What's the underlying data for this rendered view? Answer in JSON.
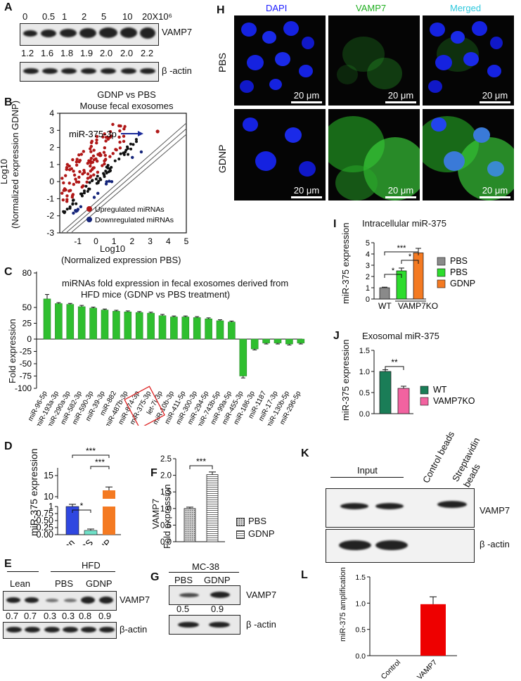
{
  "panels": {
    "A": "A",
    "B": "B",
    "C": "C",
    "D": "D",
    "E": "E",
    "F": "F",
    "G": "G",
    "H": "H",
    "I": "I",
    "J": "J",
    "K": "K",
    "L": "L"
  },
  "A": {
    "doses": [
      "0",
      "0.5",
      "1",
      "2",
      "5",
      "10",
      "20X10⁶"
    ],
    "ratios": [
      "1.2",
      "1.6",
      "1.8",
      "1.9",
      "2.0",
      "2.0",
      "2.2"
    ],
    "protein": "VAMP7",
    "loading": "β -actin"
  },
  "B": {
    "title": "GDNP vs PBS",
    "subtitle": "Mouse fecal exosomes",
    "xlabel": "Log10",
    "xlabel2": "(Normalized expression PBS)",
    "ylabel": "Log10",
    "ylabel2": "(Normalized expression GDNP)",
    "annotation": "miR-375-3p",
    "legend_up": "Upregulated miRNAs",
    "legend_down": "Downregulated miRNAs",
    "colors": {
      "up": "#b01818",
      "down": "#15257a"
    }
  },
  "C": {
    "title": "miRNAs fold expression in fecal exosomes derived from",
    "title2": "HFD mice (GDNP vs PBS treatment)",
    "ylabel": "Fold expression",
    "highlighted": "miR-375-3p"
  },
  "D": {
    "ylabel": "miR-375 expression",
    "sig1": "***",
    "sig2": "***",
    "sig3": "*"
  },
  "E": {
    "header": "HFD",
    "groups": [
      "Lean",
      "PBS",
      "GDNP"
    ],
    "ratios": [
      "0.7",
      "0.7",
      "0.3",
      "0.3",
      "0.8",
      "0.9"
    ],
    "protein": "VAMP7",
    "loading": "β-actin"
  },
  "F": {
    "ylabel": "VAMP7",
    "ylabel2": "Fold expression",
    "sig": "***",
    "legend": [
      "PBS",
      "GDNP"
    ]
  },
  "G": {
    "header": "MC-38",
    "lanes": [
      "PBS",
      "GDNP"
    ],
    "ratios": [
      "0.5",
      "0.9"
    ],
    "protein": "VAMP7",
    "loading": "β -actin"
  },
  "H": {
    "channels": [
      "DAPI",
      "VAMP7",
      "Merged"
    ],
    "channel_colors": [
      "#1a1aff",
      "#1fae1f",
      "#2fc8dd"
    ],
    "rows": [
      "PBS",
      "GDNP"
    ],
    "scale": "20 μm"
  },
  "I": {
    "title": "Intracellular miR-375",
    "ylabel": "miR-375 expression",
    "legend": [
      "PBS",
      "PBS",
      "GDNP"
    ],
    "group1": "WT",
    "group2": "VAMP7KO",
    "sigs": [
      "***",
      "*",
      "*"
    ]
  },
  "J": {
    "title": "Exosomal miR-375",
    "ylabel": "miR-375 expression",
    "legend": [
      "WT",
      "VAMP7KO"
    ],
    "sig": "**"
  },
  "K": {
    "input": "Input",
    "control": "Control beads",
    "strep1": "Streptavidin",
    "strep2": "beads",
    "protein": "VAMP7",
    "loading": "β -actin"
  },
  "L": {
    "ylabel": "miR-375 amplification"
  },
  "chart_data": [
    {
      "panel": "B",
      "type": "scatter",
      "title": "GDNP vs PBS",
      "subtitle": "Mouse fecal exosomes",
      "xlim": [
        -2,
        5
      ],
      "ylim": [
        -3,
        4
      ],
      "xticks": [
        "-1",
        "0",
        "1",
        "2",
        "3",
        "4",
        "5"
      ],
      "yticks": [
        "4",
        "3",
        "2",
        "1",
        "0",
        "-1",
        "-2",
        "-3"
      ],
      "legend": [
        "Upregulated miRNAs",
        "Downregulated miRNAs"
      ],
      "annotation": {
        "label": "miR-375-3p",
        "x": 3.1,
        "y": 3.1
      }
    },
    {
      "panel": "C",
      "type": "bar",
      "categories": [
        "miR-96-5p",
        "miR-193a-3p",
        "miR-290a-3p",
        "miR-582-3p",
        "miR-590-3p",
        "miR-39-3p",
        "miR-882",
        "miR-487b-3p",
        "miR-874-3p",
        "miR-375-3p",
        "let-7i-3p",
        "miR-10b-3p",
        "miR-411-5p",
        "miR-300-3p",
        "miR-294-5p",
        "miR-743b-5p",
        "miR-99a-5p",
        "miR-455-3p",
        "miR-186-3p",
        "miR-1187",
        "miR-17-3p",
        "miR-130b-5p",
        "miR-296-5p"
      ],
      "values": [
        72,
        60,
        58,
        52,
        49,
        46,
        44,
        43,
        42,
        41,
        37,
        35,
        35,
        34,
        32,
        29,
        27,
        -75,
        -20,
        -8,
        -8,
        -10,
        -8
      ],
      "errors": [
        7,
        1.5,
        1.5,
        2,
        1.5,
        1.5,
        1.5,
        1.5,
        1.5,
        1.5,
        2,
        1.5,
        1.5,
        1.5,
        1.5,
        1.5,
        1.5,
        3,
        1.5,
        1.5,
        1.5,
        1.5,
        1.5
      ],
      "ylabel": "Fold expression",
      "yticks": [
        "80",
        "50",
        "25",
        "0",
        "-25",
        "-50",
        "-75",
        "-100"
      ]
    },
    {
      "panel": "D",
      "type": "bar",
      "categories": [
        "Lean",
        "PBS",
        "GDNP"
      ],
      "values": [
        1.0,
        0.15,
        11.5
      ],
      "errors": [
        0.08,
        0.05,
        0.8
      ],
      "colors": [
        "#2f47e0",
        "#6fe1c8",
        "#f47a22"
      ],
      "ylabel": "miR-375 expression",
      "yticks_low": [
        "0.00",
        "0.25",
        "0.50",
        "0.75",
        "1"
      ],
      "yticks_high": [
        "10",
        "15"
      ]
    },
    {
      "panel": "F",
      "type": "bar",
      "categories": [
        "PBS",
        "GDNP"
      ],
      "values": [
        1.0,
        2.02
      ],
      "errors": [
        0.04,
        0.08
      ],
      "ylim": [
        0,
        2.5
      ],
      "yticks": [
        "0.0",
        "0.5",
        "1.0",
        "1.5",
        "2.0",
        "2.5"
      ],
      "ylabel": "VAMP7 Fold expression"
    },
    {
      "panel": "I",
      "type": "bar",
      "categories": [
        "PBS",
        "PBS",
        "GDNP"
      ],
      "values": [
        1.0,
        2.5,
        4.1
      ],
      "errors": [
        0.05,
        0.25,
        0.4
      ],
      "colors": [
        "#8a8a8a",
        "#2ddc2d",
        "#f47a22"
      ],
      "ylim": [
        0,
        5
      ],
      "yticks": [
        "0",
        "1",
        "2",
        "3",
        "4",
        "5"
      ],
      "ylabel": "miR-375 expression"
    },
    {
      "panel": "J",
      "type": "bar",
      "categories": [
        "WT",
        "VAMP7KO"
      ],
      "values": [
        1.0,
        0.6
      ],
      "errors": [
        0.04,
        0.05
      ],
      "colors": [
        "#1a7d57",
        "#f263a0"
      ],
      "ylim": [
        0,
        1.5
      ],
      "yticks": [
        "0.0",
        "0.5",
        "1.0",
        "1.5"
      ],
      "ylabel": "miR-375 expression"
    },
    {
      "panel": "L",
      "type": "bar",
      "categories": [
        "Control",
        "VAMP7"
      ],
      "values": [
        0,
        0.98
      ],
      "errors": [
        0,
        0.14
      ],
      "colors": [
        "#ee0000",
        "#ee0000"
      ],
      "ylim": [
        0,
        1.5
      ],
      "yticks": [
        "0.0",
        "0.5",
        "1.0",
        "1.5"
      ],
      "ylabel": "miR-375 amplification"
    }
  ]
}
